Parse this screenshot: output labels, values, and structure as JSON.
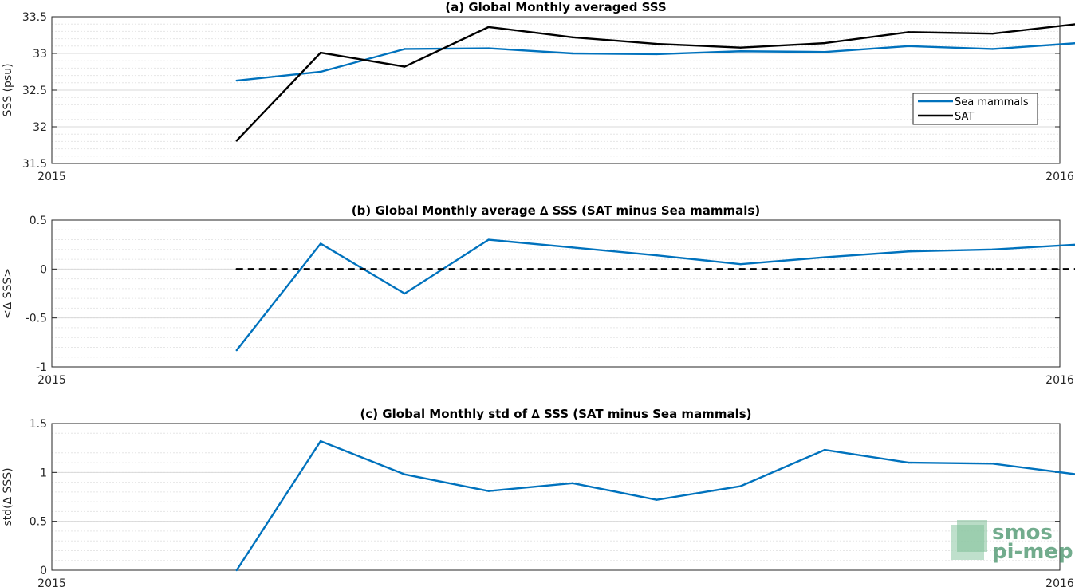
{
  "logo": {
    "line1": "smos",
    "line2": "pi-mep"
  },
  "chart_data": [
    {
      "type": "line",
      "title": "(a) Global Monthly averaged SSS",
      "xlabel": "",
      "ylabel": "SSS (psu)",
      "x_tick_labels": [
        "2015",
        "2016"
      ],
      "x": [
        3,
        4,
        5,
        6,
        7,
        8,
        9,
        10,
        11,
        12,
        13
      ],
      "xlim": [
        0.8,
        12.8
      ],
      "ylim": [
        31.5,
        33.5
      ],
      "yticks": [
        31.5,
        32,
        32.5,
        33,
        33.5
      ],
      "ytick_labels": [
        "31.5",
        "32",
        "32.5",
        "33",
        "33.5"
      ],
      "grid": true,
      "legend_position": "right",
      "series": [
        {
          "name": "Sea mammals",
          "color": "#0072BD",
          "dash": false,
          "values": [
            32.63,
            32.75,
            33.06,
            33.07,
            33.0,
            32.99,
            33.03,
            33.02,
            33.1,
            33.06,
            33.14
          ]
        },
        {
          "name": "SAT",
          "color": "#000000",
          "dash": false,
          "values": [
            31.81,
            33.01,
            32.82,
            33.36,
            33.22,
            33.13,
            33.08,
            33.14,
            33.29,
            33.27,
            33.4
          ]
        }
      ]
    },
    {
      "type": "line",
      "title": "(b) Global Monthly average ∆ SSS (SAT minus Sea mammals)",
      "xlabel": "",
      "ylabel": "<∆ SSS>",
      "x_tick_labels": [
        "2015",
        "2016"
      ],
      "x": [
        3,
        4,
        5,
        6,
        7,
        8,
        9,
        10,
        11,
        12,
        13
      ],
      "xlim": [
        0.8,
        12.8
      ],
      "ylim": [
        -1,
        0.5
      ],
      "yticks": [
        -1,
        -0.5,
        0,
        0.5
      ],
      "ytick_labels": [
        "-1",
        "-0.5",
        "0",
        "0.5"
      ],
      "grid": true,
      "series": [
        {
          "name": "",
          "color": "#0072BD",
          "dash": false,
          "values": [
            -0.83,
            0.26,
            -0.25,
            0.3,
            0.22,
            0.14,
            0.05,
            0.12,
            0.18,
            0.2,
            0.25
          ]
        },
        {
          "name": "",
          "color": "#000000",
          "dash": true,
          "values": [
            0,
            0,
            0,
            0,
            0,
            0,
            0,
            0,
            0,
            0,
            0
          ]
        }
      ]
    },
    {
      "type": "line",
      "title": "(c) Global Monthly std of ∆ SSS (SAT minus Sea mammals)",
      "xlabel": "",
      "ylabel": "std(∆ SSS)",
      "x_tick_labels": [
        "2015",
        "2016"
      ],
      "x": [
        3,
        4,
        5,
        6,
        7,
        8,
        9,
        10,
        11,
        12,
        13
      ],
      "xlim": [
        0.8,
        12.8
      ],
      "ylim": [
        0,
        1.5
      ],
      "yticks": [
        0,
        0.5,
        1,
        1.5
      ],
      "ytick_labels": [
        "0",
        "0.5",
        "1",
        "1.5"
      ],
      "grid": true,
      "series": [
        {
          "name": "",
          "color": "#0072BD",
          "dash": false,
          "values": [
            0.0,
            1.32,
            0.98,
            0.81,
            0.89,
            0.72,
            0.86,
            1.23,
            1.1,
            1.09,
            0.98
          ]
        }
      ]
    }
  ]
}
